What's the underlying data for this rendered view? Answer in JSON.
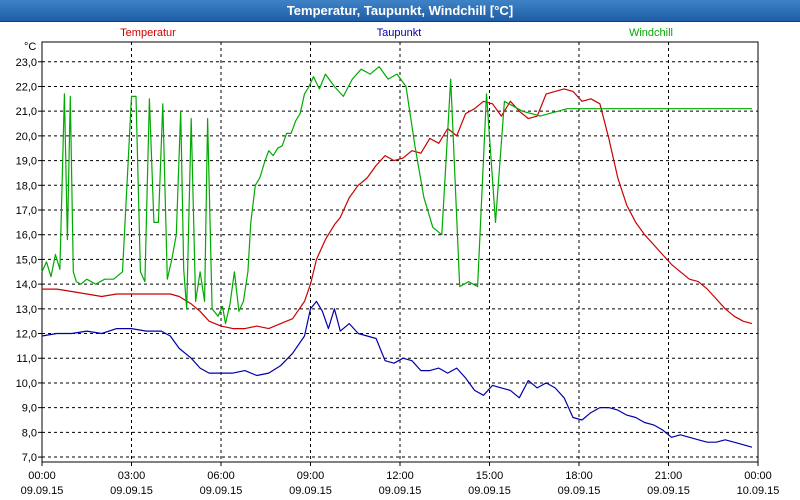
{
  "window": {
    "title": "Temperatur, Taupunkt, Windchill [°C]"
  },
  "chart_data": {
    "type": "line",
    "title": "Temperatur, Taupunkt, Windchill [°C]",
    "ylabel": "°C",
    "ylim": [
      6.8,
      23.8
    ],
    "yticks": [
      "23,0",
      "22,0",
      "21,0",
      "20,0",
      "19,0",
      "18,0",
      "17,0",
      "16,0",
      "15,0",
      "14,0",
      "13,0",
      "12,0",
      "11,0",
      "10,0",
      "9,0",
      "8,0",
      "7,0"
    ],
    "xlim": [
      0,
      24
    ],
    "xticks": [
      {
        "time": "00:00",
        "date": "09.09.15"
      },
      {
        "time": "03:00",
        "date": "09.09.15"
      },
      {
        "time": "06:00",
        "date": "09.09.15"
      },
      {
        "time": "09:00",
        "date": "09.09.15"
      },
      {
        "time": "12:00",
        "date": "09.09.15"
      },
      {
        "time": "15:00",
        "date": "09.09.15"
      },
      {
        "time": "18:00",
        "date": "09.09.15"
      },
      {
        "time": "21:00",
        "date": "09.09.15"
      },
      {
        "time": "00:00",
        "date": "10.09.15"
      }
    ],
    "grid": true,
    "series": [
      {
        "name": "Temperatur",
        "color": "#cc0000",
        "x": [
          0,
          0.5,
          1,
          1.5,
          2,
          2.5,
          3,
          3.5,
          4,
          4.3,
          4.6,
          5,
          5.3,
          5.6,
          6,
          6.4,
          6.8,
          7.2,
          7.6,
          8,
          8.4,
          8.8,
          9,
          9.2,
          9.5,
          9.8,
          10,
          10.3,
          10.6,
          10.9,
          11.2,
          11.5,
          11.8,
          12.1,
          12.4,
          12.7,
          13,
          13.3,
          13.6,
          13.9,
          14.2,
          14.5,
          14.8,
          15.1,
          15.4,
          15.7,
          16,
          16.3,
          16.6,
          16.9,
          17.2,
          17.5,
          17.8,
          18.1,
          18.4,
          18.7,
          19,
          19.3,
          19.6,
          19.9,
          20.2,
          20.5,
          20.8,
          21.1,
          21.4,
          21.7,
          22,
          22.3,
          22.6,
          22.9,
          23.2,
          23.5,
          23.8
        ],
        "values": [
          13.8,
          13.8,
          13.7,
          13.6,
          13.5,
          13.6,
          13.6,
          13.6,
          13.6,
          13.6,
          13.5,
          13.2,
          12.9,
          12.5,
          12.3,
          12.2,
          12.2,
          12.3,
          12.2,
          12.4,
          12.6,
          13.3,
          14.0,
          15.0,
          15.8,
          16.4,
          16.7,
          17.5,
          18.0,
          18.3,
          18.8,
          19.2,
          19.0,
          19.1,
          19.4,
          19.3,
          19.9,
          19.7,
          20.3,
          20.0,
          20.9,
          21.1,
          21.4,
          21.3,
          20.8,
          21.4,
          21.0,
          20.7,
          20.8,
          21.7,
          21.8,
          21.9,
          21.8,
          21.4,
          21.5,
          21.3,
          19.9,
          18.3,
          17.2,
          16.5,
          16.0,
          15.6,
          15.2,
          14.8,
          14.5,
          14.2,
          14.1,
          13.8,
          13.4,
          13.0,
          12.7,
          12.5,
          12.4
        ]
      },
      {
        "name": "Taupunkt",
        "color": "#0000aa",
        "x": [
          0,
          0.5,
          1,
          1.5,
          2,
          2.5,
          3,
          3.5,
          4,
          4.3,
          4.6,
          5,
          5.3,
          5.6,
          6,
          6.4,
          6.8,
          7.2,
          7.6,
          8,
          8.4,
          8.8,
          9,
          9.2,
          9.4,
          9.6,
          9.8,
          10,
          10.3,
          10.6,
          10.9,
          11.2,
          11.5,
          11.8,
          12.1,
          12.4,
          12.7,
          13,
          13.3,
          13.6,
          13.9,
          14.2,
          14.5,
          14.8,
          15.1,
          15.4,
          15.7,
          16,
          16.3,
          16.6,
          16.9,
          17.2,
          17.5,
          17.8,
          18.1,
          18.4,
          18.7,
          19,
          19.3,
          19.6,
          19.9,
          20.2,
          20.5,
          20.8,
          21.1,
          21.4,
          21.7,
          22,
          22.3,
          22.6,
          22.9,
          23.2,
          23.5,
          23.8
        ],
        "values": [
          11.9,
          12.0,
          12.0,
          12.1,
          12.0,
          12.2,
          12.2,
          12.1,
          12.1,
          11.9,
          11.4,
          11.0,
          10.6,
          10.4,
          10.4,
          10.4,
          10.5,
          10.3,
          10.4,
          10.7,
          11.2,
          11.9,
          13.0,
          13.3,
          12.9,
          12.2,
          13.0,
          12.1,
          12.4,
          12.0,
          11.9,
          11.8,
          10.9,
          10.8,
          11.0,
          10.9,
          10.5,
          10.5,
          10.6,
          10.4,
          10.6,
          10.2,
          9.7,
          9.5,
          9.9,
          9.8,
          9.7,
          9.4,
          10.1,
          9.8,
          10.0,
          9.8,
          9.4,
          8.6,
          8.5,
          8.8,
          9.0,
          9.0,
          8.9,
          8.7,
          8.6,
          8.4,
          8.3,
          8.1,
          7.8,
          7.9,
          7.8,
          7.7,
          7.6,
          7.6,
          7.7,
          7.6,
          7.5,
          7.4
        ]
      },
      {
        "name": "Windchill",
        "color": "#00aa00",
        "x": [
          0,
          0.15,
          0.3,
          0.45,
          0.6,
          0.75,
          0.85,
          0.95,
          1.05,
          1.15,
          1.3,
          1.5,
          1.8,
          2.1,
          2.4,
          2.7,
          3,
          3.15,
          3.3,
          3.45,
          3.6,
          3.75,
          3.9,
          4.05,
          4.2,
          4.35,
          4.5,
          4.65,
          4.75,
          4.85,
          5.0,
          5.15,
          5.3,
          5.45,
          5.55,
          5.7,
          5.9,
          6.05,
          6.15,
          6.3,
          6.45,
          6.6,
          6.75,
          6.9,
          7.0,
          7.15,
          7.3,
          7.45,
          7.6,
          7.75,
          7.9,
          8.05,
          8.2,
          8.35,
          8.5,
          8.65,
          8.8,
          8.95,
          9.1,
          9.3,
          9.5,
          9.8,
          10.1,
          10.4,
          10.7,
          11,
          11.3,
          11.6,
          11.9,
          12.2,
          12.5,
          12.8,
          13.1,
          13.4,
          13.7,
          14,
          14.3,
          14.6,
          14.9,
          15.2,
          15.5,
          15.8,
          16.1,
          16.4,
          16.7,
          17,
          17.3,
          17.6,
          17.9,
          18.2,
          18.5,
          18.8,
          19.1,
          19.4,
          19.7,
          20,
          20.3,
          20.6,
          20.9,
          21.1,
          21.25,
          21.4,
          21.55,
          21.7,
          21.85,
          22,
          22.15,
          22.3,
          22.45,
          22.6,
          22.75,
          22.9,
          23.05,
          23.2,
          23.35,
          23.5,
          23.8
        ],
        "values": [
          14.5,
          14.9,
          14.3,
          15.2,
          14.6,
          21.7,
          15.8,
          21.6,
          14.5,
          14.1,
          14.0,
          14.2,
          14.0,
          14.2,
          14.2,
          14.5,
          21.6,
          21.6,
          14.5,
          14.1,
          21.5,
          16.5,
          16.5,
          21.3,
          14.2,
          15.0,
          16.0,
          21.0,
          14.6,
          13.0,
          20.7,
          13.3,
          14.5,
          13.3,
          20.7,
          13.0,
          12.7,
          13.1,
          12.4,
          13.2,
          14.5,
          12.9,
          13.3,
          14.5,
          16.5,
          18.0,
          18.3,
          18.9,
          19.4,
          19.2,
          19.5,
          19.6,
          20.1,
          20.1,
          20.6,
          20.9,
          21.7,
          22.0,
          22.4,
          21.9,
          22.5,
          22.0,
          21.6,
          22.3,
          22.7,
          22.5,
          22.8,
          22.3,
          22.5,
          22.0,
          19.6,
          17.5,
          16.3,
          16.0,
          22.3,
          13.9,
          14.1,
          13.9,
          21.7,
          16.5,
          21.4,
          21.2,
          21.0,
          20.9,
          20.8,
          20.9,
          21.0,
          21.1,
          21.1,
          21.1,
          21.1,
          21.1,
          21.1,
          21.1,
          21.1,
          21.1,
          21.1,
          21.1,
          21.1,
          21.1,
          21.1,
          21.1,
          21.1,
          21.1,
          21.1,
          21.1,
          21.1,
          21.1,
          21.1,
          21.1,
          21.1,
          21.1,
          21.1,
          21.1,
          21.1,
          21.1,
          21.1
        ]
      }
    ]
  }
}
